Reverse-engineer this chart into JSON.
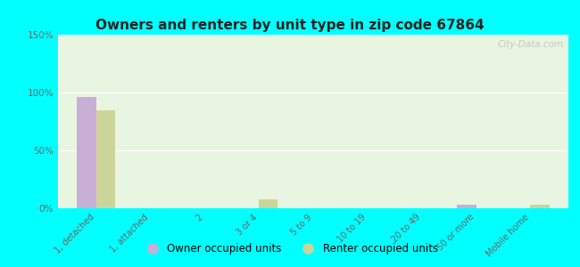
{
  "title": "Owners and renters by unit type in zip code 67864",
  "categories": [
    "1, detached",
    "1, attached",
    "2",
    "3 or 4",
    "5 to 9",
    "10 to 19",
    "20 to 49",
    "50 or more",
    "Mobile home"
  ],
  "owner_values": [
    96,
    0,
    0,
    0,
    0,
    0,
    0,
    3,
    0
  ],
  "renter_values": [
    85,
    0,
    0,
    8,
    0,
    0,
    0,
    0,
    3
  ],
  "owner_color": "#c9aed6",
  "renter_color": "#cdd49a",
  "background_plot": "#e8f5e0",
  "background_fig": "#00ffff",
  "ylim": [
    0,
    150
  ],
  "yticks": [
    0,
    50,
    100,
    150
  ],
  "ytick_labels": [
    "0%",
    "50%",
    "100%",
    "150%"
  ],
  "legend_owner": "Owner occupied units",
  "legend_renter": "Renter occupied units",
  "watermark": "City-Data.com",
  "bar_width": 0.35
}
